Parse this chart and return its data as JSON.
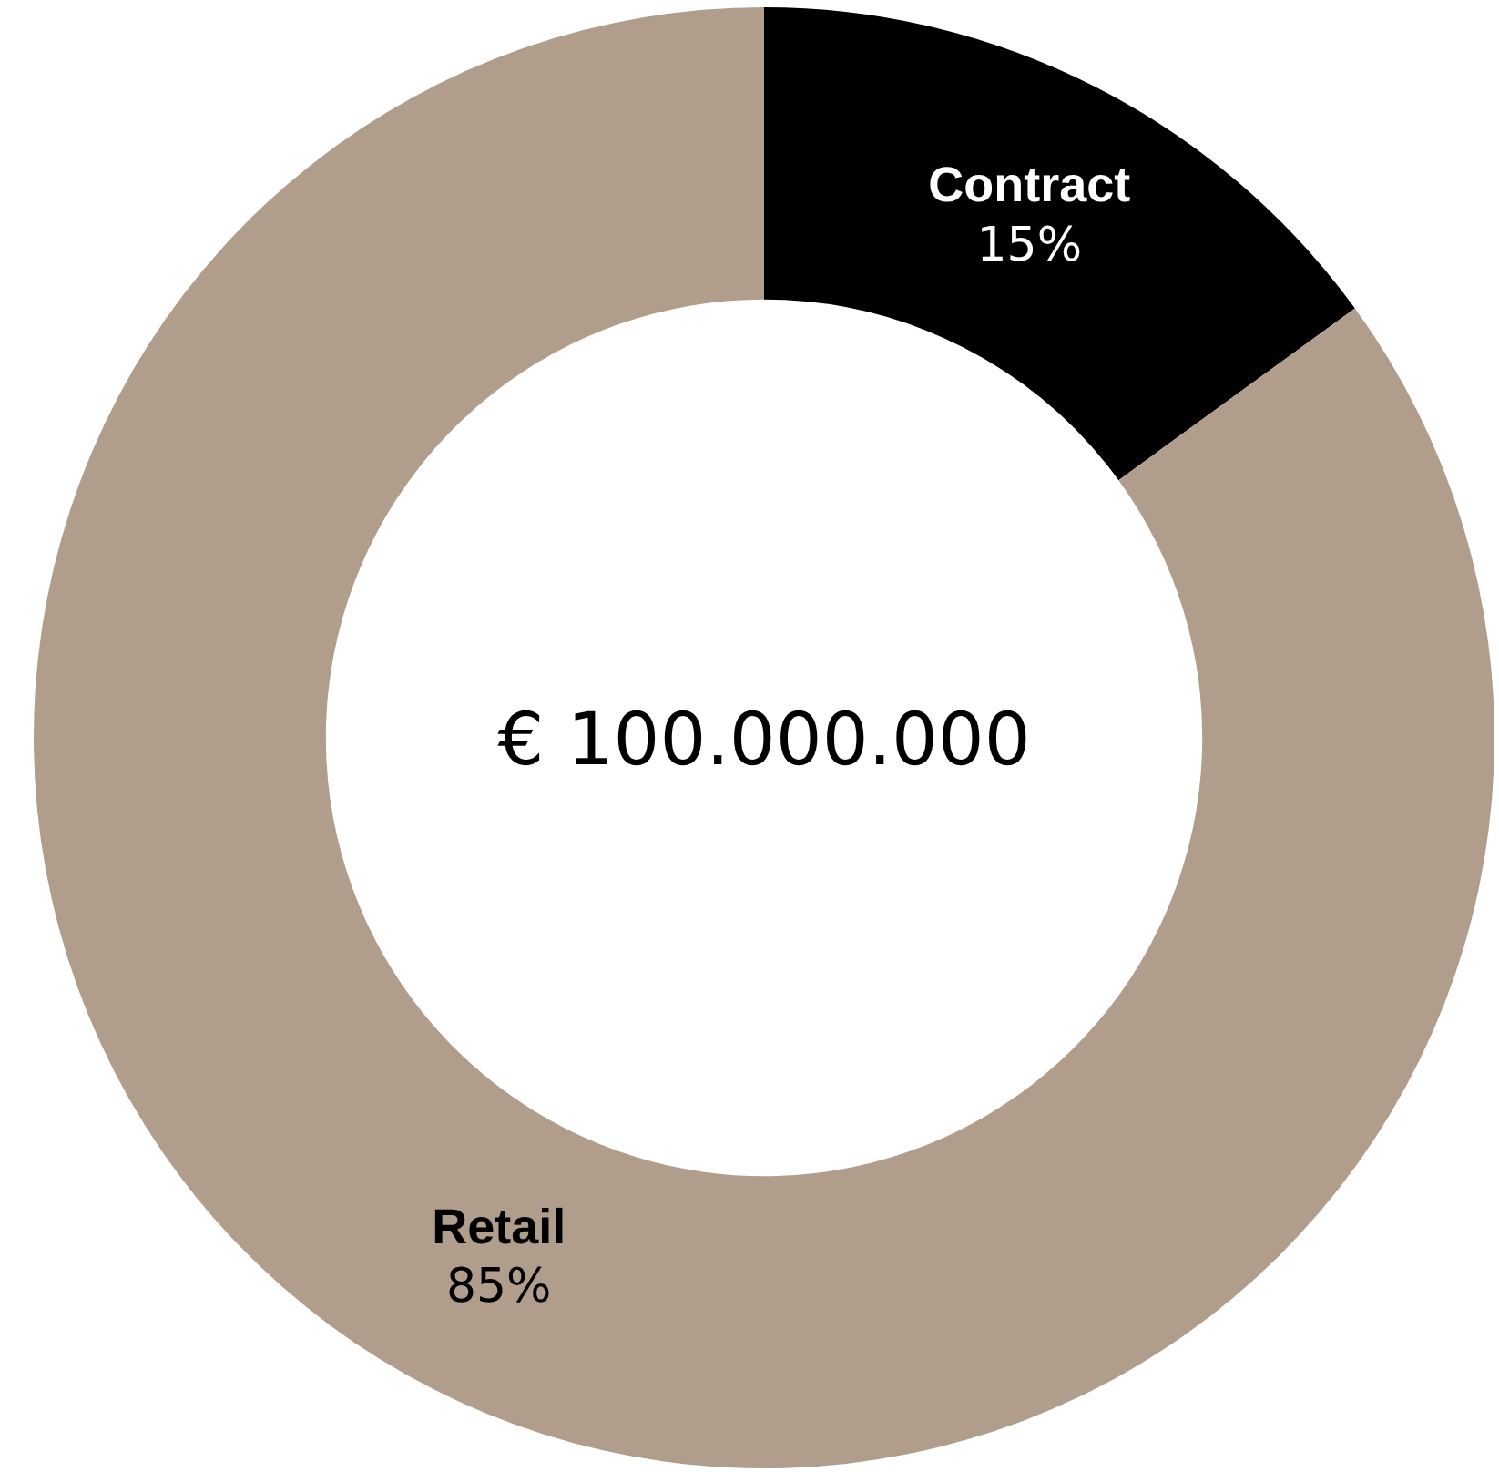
{
  "chart_data": {
    "type": "donut",
    "categories": [
      "Contract",
      "Retail"
    ],
    "values": [
      15,
      85
    ],
    "value_labels": [
      "15%",
      "85%"
    ],
    "colors": [
      "#000000",
      "#b09d8b"
    ],
    "annotations": [
      "€ 100.000.000"
    ],
    "legend": false
  }
}
